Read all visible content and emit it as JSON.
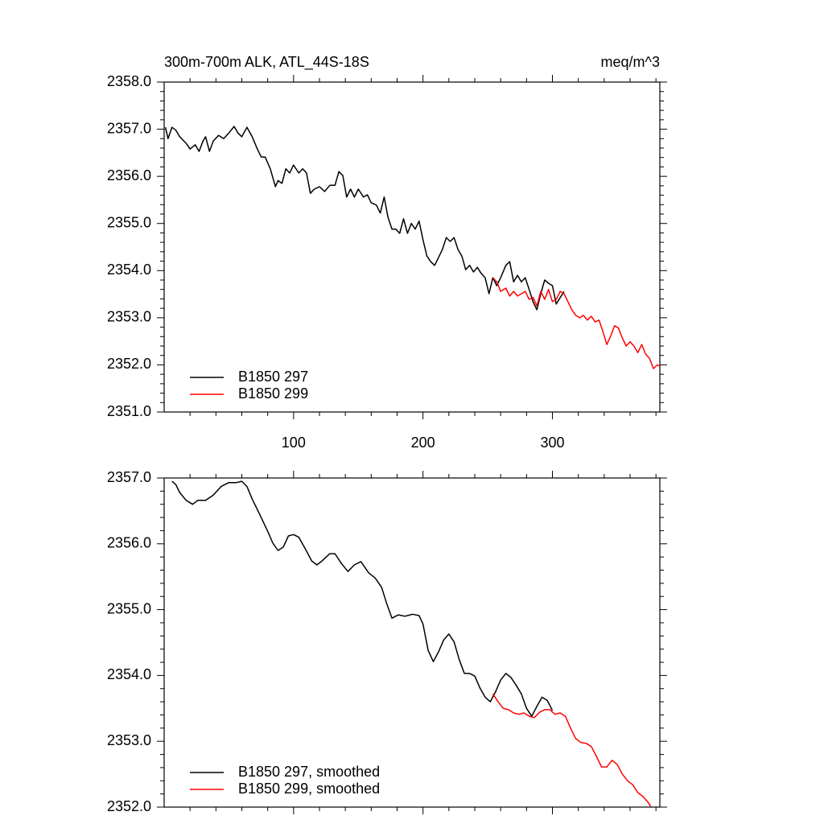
{
  "chart_data": [
    {
      "type": "line",
      "title": "300m-700m ALK, ATL_44S-18S",
      "units": "meq/m^3",
      "xlim": [
        0,
        383
      ],
      "ylim": [
        2351,
        2358
      ],
      "xticks": [
        100,
        200,
        300
      ],
      "show_xtick_labels": true,
      "xminorticks": [
        20,
        40,
        60,
        80,
        120,
        140,
        160,
        180,
        220,
        240,
        260,
        280,
        320,
        340,
        360,
        380
      ],
      "yticks": [
        {
          "value": 2351,
          "label": "2351.0"
        },
        {
          "value": 2352,
          "label": "2352.0"
        },
        {
          "value": 2353,
          "label": "2353.0"
        },
        {
          "value": 2354,
          "label": "2354.0"
        },
        {
          "value": 2355,
          "label": "2355.0"
        },
        {
          "value": 2356,
          "label": "2356.0"
        },
        {
          "value": 2357,
          "label": "2357.0"
        },
        {
          "value": 2358,
          "label": "2358.0"
        }
      ],
      "yminorticks": [
        2351.2,
        2351.4,
        2351.6,
        2351.8,
        2352.2,
        2352.4,
        2352.6,
        2352.8,
        2353.2,
        2353.4,
        2353.6,
        2353.8,
        2354.2,
        2354.4,
        2354.6,
        2354.8,
        2355.2,
        2355.4,
        2355.6,
        2355.8,
        2356.2,
        2356.4,
        2356.6,
        2356.8,
        2357.2,
        2357.4,
        2357.6,
        2357.8
      ],
      "legend": "lower left",
      "series": [
        {
          "name": "B1850 297",
          "color": "#000000",
          "x": [
            1,
            3,
            6,
            9,
            12,
            17,
            20,
            24,
            27,
            30,
            32,
            35,
            38,
            42,
            46,
            50,
            54,
            57,
            60,
            64,
            68,
            72,
            75,
            78,
            82,
            86,
            88,
            91,
            94,
            97,
            100,
            104,
            107,
            110,
            113,
            116,
            120,
            124,
            128,
            132,
            135,
            138,
            141,
            144,
            147,
            150,
            154,
            157,
            160,
            164,
            167,
            170,
            173,
            176,
            179,
            182,
            185,
            188,
            191,
            194,
            197,
            200,
            203,
            206,
            209,
            212,
            215,
            218,
            221,
            224,
            227,
            230,
            233,
            236,
            239,
            242,
            245,
            248,
            251,
            254,
            257,
            260,
            264,
            267,
            270,
            273,
            276,
            279,
            282,
            285,
            288,
            291,
            294,
            297,
            300,
            303,
            306,
            309
          ],
          "values": [
            2357.04,
            2356.8,
            2357.04,
            2356.98,
            2356.84,
            2356.7,
            2356.58,
            2356.67,
            2356.53,
            2356.75,
            2356.84,
            2356.53,
            2356.75,
            2356.87,
            2356.8,
            2356.92,
            2357.06,
            2356.92,
            2356.84,
            2357.04,
            2356.84,
            2356.58,
            2356.41,
            2356.41,
            2356.16,
            2355.78,
            2355.91,
            2355.85,
            2356.16,
            2356.07,
            2356.24,
            2356.07,
            2356.16,
            2356.07,
            2355.64,
            2355.73,
            2355.78,
            2355.68,
            2355.81,
            2355.81,
            2356.1,
            2356.02,
            2355.56,
            2355.73,
            2355.56,
            2355.73,
            2355.56,
            2355.61,
            2355.44,
            2355.39,
            2355.22,
            2355.56,
            2355.13,
            2354.88,
            2354.88,
            2354.79,
            2355.1,
            2354.79,
            2355.0,
            2354.88,
            2355.05,
            2354.65,
            2354.31,
            2354.19,
            2354.11,
            2354.28,
            2354.45,
            2354.7,
            2354.62,
            2354.7,
            2354.45,
            2354.31,
            2354.02,
            2354.11,
            2353.97,
            2354.07,
            2353.94,
            2353.85,
            2353.51,
            2353.85,
            2353.68,
            2353.85,
            2354.11,
            2354.19,
            2353.76,
            2353.9,
            2353.76,
            2353.85,
            2353.6,
            2353.34,
            2353.17,
            2353.51,
            2353.8,
            2353.73,
            2353.68,
            2353.29,
            2353.43,
            2353.56
          ]
        },
        {
          "name": "B1850 299",
          "color": "#ff0000",
          "x": [
            254,
            257,
            260,
            264,
            267,
            270,
            273,
            276,
            279,
            282,
            285,
            288,
            291,
            294,
            297,
            300,
            303,
            306,
            309,
            312,
            315,
            318,
            321,
            324,
            327,
            330,
            333,
            336,
            339,
            342,
            345,
            348,
            351,
            354,
            357,
            360,
            363,
            366,
            369,
            372,
            375,
            378,
            381,
            383
          ],
          "values": [
            2353.85,
            2353.76,
            2353.56,
            2353.63,
            2353.46,
            2353.56,
            2353.46,
            2353.51,
            2353.56,
            2353.39,
            2353.43,
            2353.25,
            2353.56,
            2353.39,
            2353.6,
            2353.34,
            2353.39,
            2353.56,
            2353.51,
            2353.34,
            2353.17,
            2353.05,
            2353.0,
            2353.05,
            2352.95,
            2353.03,
            2352.91,
            2352.95,
            2352.71,
            2352.43,
            2352.61,
            2352.83,
            2352.78,
            2352.57,
            2352.4,
            2352.49,
            2352.4,
            2352.26,
            2352.43,
            2352.23,
            2352.14,
            2351.92,
            2352.0,
            2351.97
          ]
        }
      ]
    },
    {
      "type": "line",
      "xlim": [
        0,
        383
      ],
      "ylim": [
        2352,
        2357
      ],
      "xticks": [
        100,
        200,
        300
      ],
      "show_xtick_labels": false,
      "xminorticks": [
        20,
        40,
        60,
        80,
        120,
        140,
        160,
        180,
        220,
        240,
        260,
        280,
        320,
        340,
        360,
        380
      ],
      "yticks": [
        {
          "value": 2352,
          "label": "2352.0"
        },
        {
          "value": 2353,
          "label": "2353.0"
        },
        {
          "value": 2354,
          "label": "2354.0"
        },
        {
          "value": 2355,
          "label": "2355.0"
        },
        {
          "value": 2356,
          "label": "2356.0"
        },
        {
          "value": 2357,
          "label": "2357.0"
        }
      ],
      "yminorticks": [
        2352.2,
        2352.4,
        2352.6,
        2352.8,
        2353.2,
        2353.4,
        2353.6,
        2353.8,
        2354.2,
        2354.4,
        2354.6,
        2354.8,
        2355.2,
        2355.4,
        2355.6,
        2355.8,
        2356.2,
        2356.4,
        2356.6,
        2356.8
      ],
      "legend": "lower left",
      "series": [
        {
          "name": "B1850 297, smoothed",
          "color": "#000000",
          "x": [
            6,
            9,
            12,
            17,
            22,
            26,
            32,
            38,
            44,
            50,
            56,
            60,
            64,
            68,
            74,
            80,
            84,
            88,
            92,
            96,
            100,
            104,
            110,
            114,
            118,
            122,
            128,
            132,
            137,
            142,
            147,
            152,
            158,
            163,
            168,
            172,
            176,
            181,
            186,
            192,
            197,
            200,
            204,
            208,
            212,
            216,
            220,
            224,
            228,
            232,
            236,
            240,
            244,
            248,
            252,
            256,
            260,
            264,
            268,
            272,
            276,
            280,
            284,
            288,
            292,
            296,
            300
          ],
          "values": [
            2356.95,
            2356.9,
            2356.78,
            2356.66,
            2356.6,
            2356.66,
            2356.66,
            2356.74,
            2356.87,
            2356.93,
            2356.93,
            2356.95,
            2356.87,
            2356.68,
            2356.44,
            2356.19,
            2356.01,
            2355.9,
            2355.95,
            2356.12,
            2356.14,
            2356.1,
            2355.89,
            2355.74,
            2355.68,
            2355.74,
            2355.85,
            2355.85,
            2355.7,
            2355.58,
            2355.68,
            2355.73,
            2355.56,
            2355.48,
            2355.34,
            2355.09,
            2354.87,
            2354.92,
            2354.9,
            2354.93,
            2354.91,
            2354.78,
            2354.38,
            2354.21,
            2354.36,
            2354.54,
            2354.63,
            2354.51,
            2354.24,
            2354.03,
            2354.03,
            2353.99,
            2353.81,
            2353.67,
            2353.6,
            2353.75,
            2353.93,
            2354.03,
            2353.97,
            2353.85,
            2353.72,
            2353.5,
            2353.38,
            2353.53,
            2353.67,
            2353.62,
            2353.47
          ]
        },
        {
          "name": "B1850 299, smoothed",
          "color": "#ff0000",
          "x": [
            254,
            258,
            262,
            266,
            270,
            274,
            278,
            282,
            286,
            290,
            294,
            298,
            302,
            306,
            310,
            314,
            318,
            322,
            326,
            330,
            334,
            338,
            342,
            346,
            350,
            354,
            358,
            362,
            366,
            370,
            374,
            376
          ],
          "values": [
            2353.72,
            2353.6,
            2353.5,
            2353.48,
            2353.43,
            2353.41,
            2353.43,
            2353.38,
            2353.36,
            2353.44,
            2353.48,
            2353.48,
            2353.41,
            2353.43,
            2353.38,
            2353.2,
            2353.04,
            2352.98,
            2352.97,
            2352.92,
            2352.77,
            2352.61,
            2352.61,
            2352.71,
            2352.65,
            2352.5,
            2352.4,
            2352.34,
            2352.22,
            2352.16,
            2352.07,
            2352.01
          ]
        }
      ]
    }
  ]
}
